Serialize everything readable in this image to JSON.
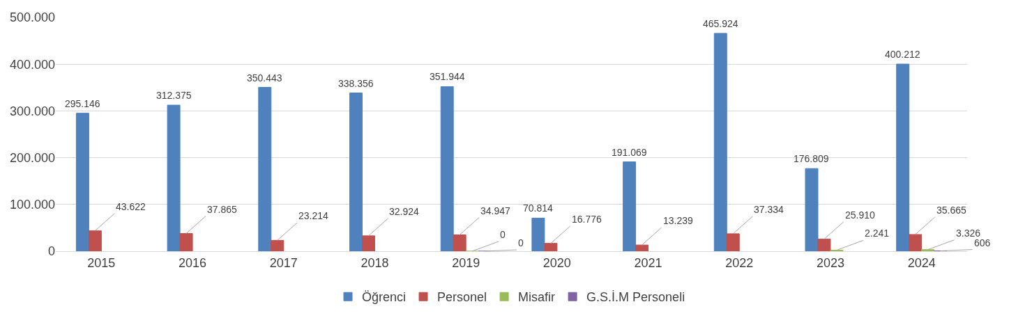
{
  "chart_data": {
    "type": "bar",
    "categories": [
      "2015",
      "2016",
      "2017",
      "2018",
      "2019",
      "2020",
      "2021",
      "2022",
      "2023",
      "2024"
    ],
    "series": [
      {
        "name": "Öğrenci",
        "color": "#4f81bd",
        "values": [
          295146,
          312375,
          350443,
          338356,
          351944,
          70814,
          191069,
          465924,
          176809,
          400212
        ],
        "value_labels": [
          "295.146",
          "312.375",
          "350.443",
          "338.356",
          "351.944",
          "70.814",
          "191.069",
          "465.924",
          "176.809",
          "400.212"
        ]
      },
      {
        "name": "Personel",
        "color": "#c0504d",
        "values": [
          43622,
          37865,
          23214,
          32924,
          34947,
          16776,
          13239,
          37334,
          25910,
          35665
        ],
        "value_labels": [
          "43.622",
          "37.865",
          "23.214",
          "32.924",
          "34.947",
          "16.776",
          "13.239",
          "37.334",
          "25.910",
          "35.665"
        ]
      },
      {
        "name": "Misafir",
        "color": "#9bbb59",
        "values": [
          null,
          null,
          null,
          null,
          0,
          null,
          null,
          null,
          2241,
          3326
        ],
        "value_labels": [
          null,
          null,
          null,
          null,
          "0",
          null,
          null,
          null,
          "2.241",
          "3.326"
        ]
      },
      {
        "name": "G.S.İ.M Personeli",
        "color": "#8064a2",
        "values": [
          null,
          null,
          null,
          null,
          0,
          null,
          null,
          null,
          null,
          606
        ],
        "value_labels": [
          null,
          null,
          null,
          null,
          "0",
          null,
          null,
          null,
          null,
          "606"
        ]
      }
    ],
    "ylim": [
      0,
      500000
    ],
    "yticks": [
      {
        "value": 0,
        "label": "0"
      },
      {
        "value": 100000,
        "label": "100.000"
      },
      {
        "value": 200000,
        "label": "200.000"
      },
      {
        "value": 300000,
        "label": "300.000"
      },
      {
        "value": 400000,
        "label": "400.000"
      },
      {
        "value": 500000,
        "label": "500.000"
      }
    ],
    "grid": "y",
    "legend": "bottom"
  }
}
